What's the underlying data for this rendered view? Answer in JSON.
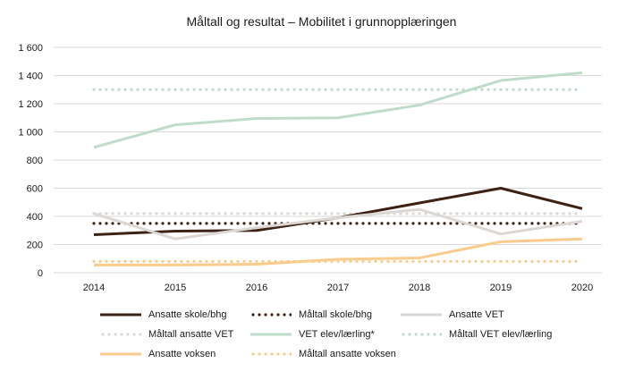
{
  "chart_data": {
    "type": "line",
    "title": "Måltall og resultat – Mobilitet i grunnopplæringen",
    "xlabel": "",
    "ylabel": "",
    "x": [
      "2014",
      "2015",
      "2016",
      "2017",
      "2018",
      "2019",
      "2020"
    ],
    "ylim": [
      0,
      1600
    ],
    "yticks": [
      0,
      200,
      400,
      600,
      800,
      1000,
      1200,
      1400,
      1600
    ],
    "ytick_labels": [
      "0",
      "200",
      "400",
      "600",
      "800",
      "1 000",
      "1 200",
      "1 400",
      "1 600"
    ],
    "grid": "horizontal",
    "legend_position": "bottom",
    "series": [
      {
        "name": "Ansatte skole/bhg",
        "style": "solid",
        "color": "#3d2114",
        "values": [
          270,
          295,
          300,
          390,
          495,
          600,
          455
        ]
      },
      {
        "name": "Måltall skole/bhg",
        "style": "dotted",
        "color": "#3d2114",
        "values": [
          350,
          350,
          350,
          350,
          350,
          350,
          350
        ]
      },
      {
        "name": "Ansatte VET",
        "style": "solid",
        "color": "#dcd7d2",
        "values": [
          420,
          240,
          320,
          390,
          450,
          275,
          365
        ]
      },
      {
        "name": "Måltall ansatte VET",
        "style": "dotted",
        "color": "#dcd7d2",
        "values": [
          420,
          420,
          420,
          420,
          420,
          420,
          420
        ]
      },
      {
        "name": "VET elev/lærling*",
        "style": "solid",
        "color": "#bfdccb",
        "values": [
          890,
          1050,
          1095,
          1100,
          1190,
          1365,
          1420
        ]
      },
      {
        "name": "Måltall VET elev/lærling",
        "style": "dotted",
        "color": "#bfdccb",
        "values": [
          1300,
          1300,
          1300,
          1300,
          1300,
          1300,
          1300
        ]
      },
      {
        "name": "Ansatte voksen",
        "style": "solid",
        "color": "#fbcb8c",
        "values": [
          55,
          55,
          60,
          95,
          105,
          220,
          240
        ]
      },
      {
        "name": "Måltall ansatte voksen",
        "style": "dotted",
        "color": "#fbcb8c",
        "values": [
          80,
          80,
          80,
          80,
          80,
          80,
          80
        ]
      }
    ]
  }
}
